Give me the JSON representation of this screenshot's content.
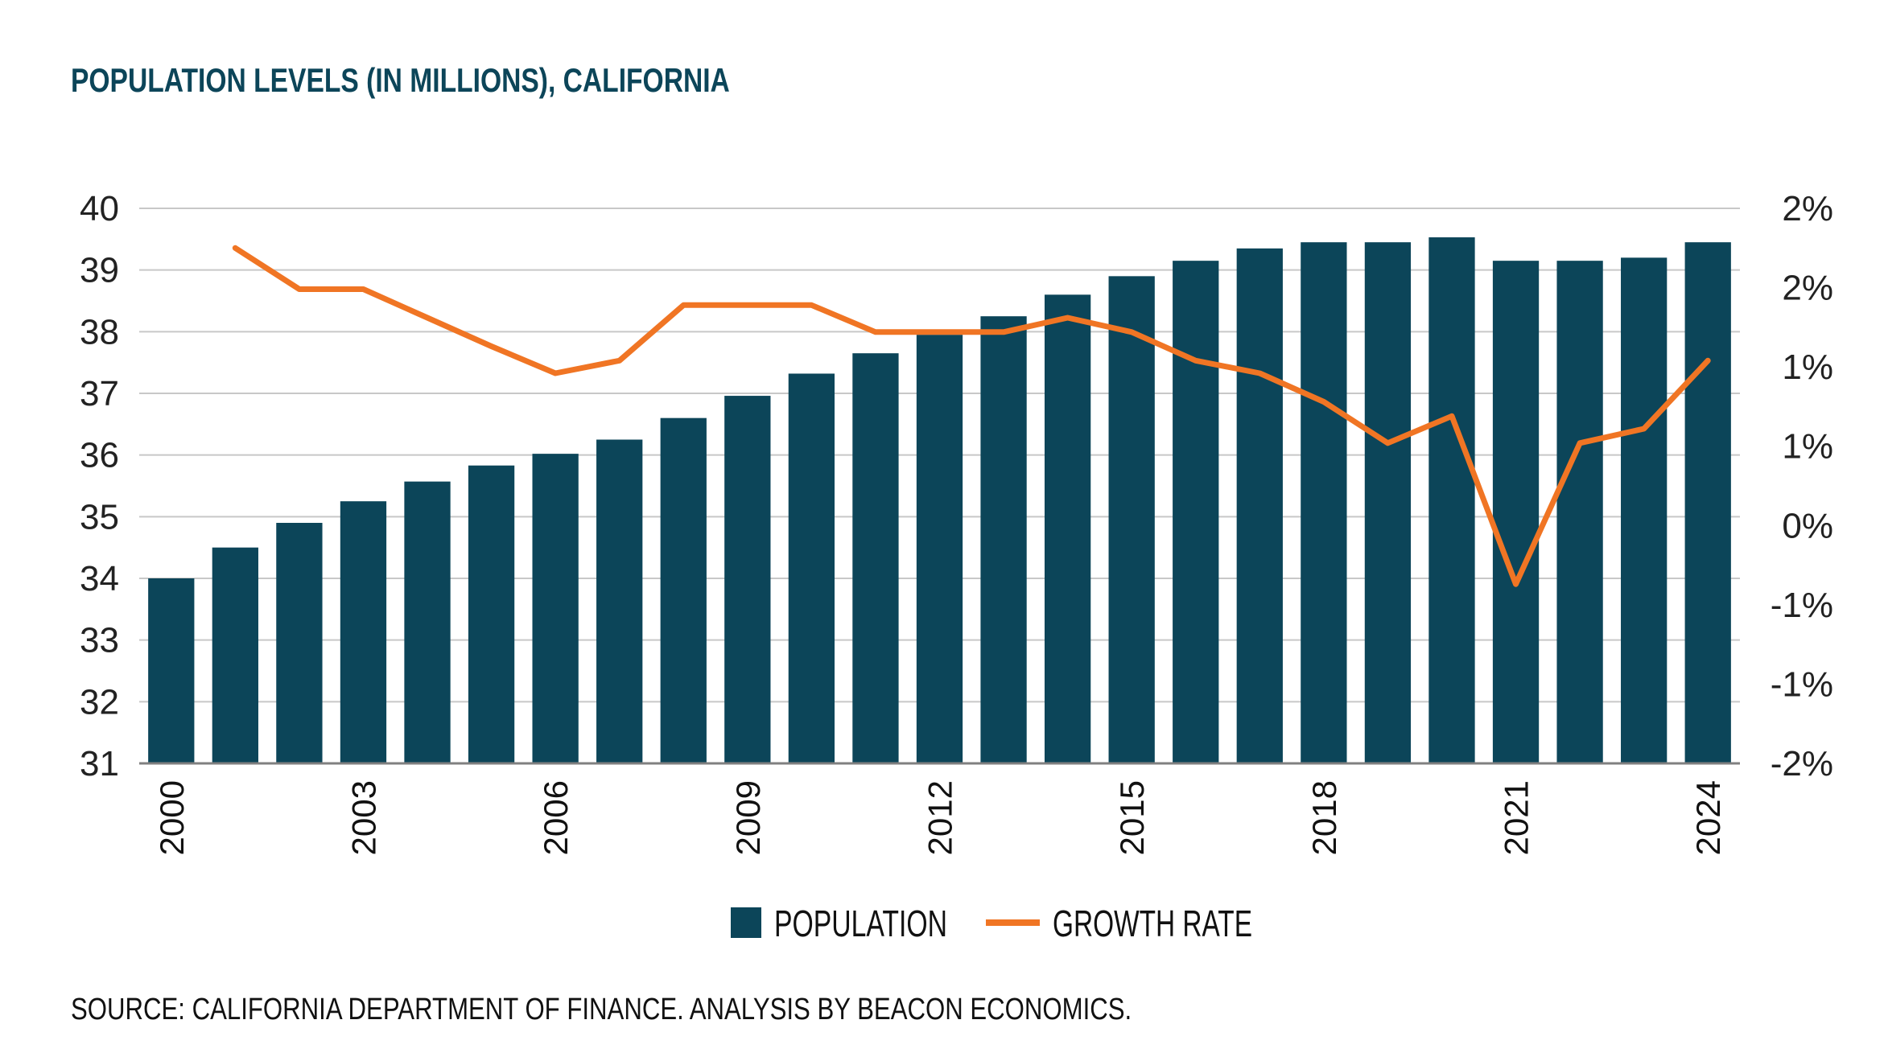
{
  "chart_data": {
    "type": "bar",
    "title": "POPULATION LEVELS (IN MILLIONS), CALIFORNIA",
    "source": "SOURCE: CALIFORNIA DEPARTMENT OF FINANCE. ANALYSIS BY BEACON ECONOMICS.",
    "x": [
      2000,
      2001,
      2002,
      2003,
      2004,
      2005,
      2006,
      2007,
      2008,
      2009,
      2010,
      2011,
      2012,
      2013,
      2014,
      2015,
      2016,
      2017,
      2018,
      2019,
      2020,
      2021,
      2022,
      2023,
      2024
    ],
    "x_tick_labels": [
      "2000",
      "2003",
      "2006",
      "2009",
      "2012",
      "2015",
      "2018",
      "2021",
      "2024"
    ],
    "y_left": {
      "ylim": [
        31,
        40
      ],
      "ticks": [
        "40",
        "39",
        "38",
        "37",
        "36",
        "35",
        "34",
        "33",
        "32",
        "31"
      ]
    },
    "y_right": {
      "ylim": [
        -1.75,
        1.75
      ],
      "ticks": [
        "2%",
        "2%",
        "1%",
        "1%",
        "0%",
        "-1%",
        "-1%",
        "-2%"
      ]
    },
    "series": [
      {
        "name": "POPULATION",
        "type": "bar",
        "axis": "left",
        "color": "#0c4559",
        "values": [
          34.0,
          34.5,
          34.9,
          35.25,
          35.57,
          35.83,
          36.02,
          36.25,
          36.6,
          36.96,
          37.32,
          37.65,
          37.95,
          38.25,
          38.6,
          38.9,
          39.15,
          39.35,
          39.45,
          39.45,
          39.53,
          39.15,
          39.15,
          39.2,
          39.45
        ]
      },
      {
        "name": "GROWTH RATE",
        "type": "line",
        "axis": "right",
        "color": "#f07524",
        "values": [
          null,
          1.5,
          1.24,
          1.24,
          1.06,
          0.88,
          0.71,
          0.79,
          1.14,
          1.14,
          1.14,
          0.97,
          0.97,
          0.97,
          1.06,
          0.97,
          0.79,
          0.71,
          0.53,
          0.27,
          0.44,
          -0.62,
          0.27,
          0.36,
          0.79
        ]
      }
    ],
    "legend": {
      "placement": "bottom-center"
    },
    "grid": true
  }
}
